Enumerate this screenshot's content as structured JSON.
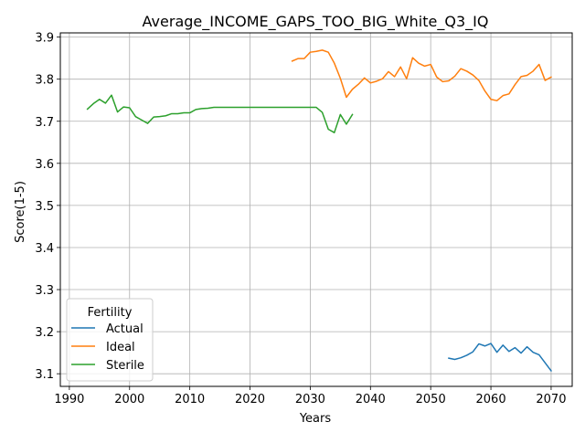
{
  "chart_data": {
    "type": "line",
    "title": "Average_INCOME_GAPS_TOO_BIG_White_Q3_IQ",
    "xlabel": "Years",
    "ylabel": "Score(1-5)",
    "xlim": [
      1988.5,
      2073.5
    ],
    "ylim": [
      3.07,
      3.91
    ],
    "xticks": [
      1990,
      2000,
      2010,
      2020,
      2030,
      2040,
      2050,
      2060,
      2070
    ],
    "yticks": [
      3.1,
      3.2,
      3.3,
      3.4,
      3.5,
      3.6,
      3.7,
      3.8,
      3.9
    ],
    "xtick_labels": [
      "1990",
      "2000",
      "2010",
      "2020",
      "2030",
      "2040",
      "2050",
      "2060",
      "2070"
    ],
    "ytick_labels": [
      "3.1",
      "3.2",
      "3.3",
      "3.4",
      "3.5",
      "3.6",
      "3.7",
      "3.8",
      "3.9"
    ],
    "grid": true,
    "legend": {
      "title": "Fertility",
      "placement": "lower-left"
    },
    "series": [
      {
        "name": "Actual",
        "color": "#1f77b4",
        "points": [
          [
            2053,
            3.137
          ],
          [
            2054,
            3.134
          ],
          [
            2055,
            3.138
          ],
          [
            2056,
            3.144
          ],
          [
            2057,
            3.152
          ],
          [
            2058,
            3.171
          ],
          [
            2059,
            3.166
          ],
          [
            2060,
            3.172
          ],
          [
            2061,
            3.151
          ],
          [
            2062,
            3.168
          ],
          [
            2063,
            3.153
          ],
          [
            2064,
            3.162
          ],
          [
            2065,
            3.149
          ],
          [
            2066,
            3.164
          ],
          [
            2067,
            3.151
          ],
          [
            2068,
            3.145
          ],
          [
            2069,
            3.126
          ],
          [
            2070,
            3.107
          ]
        ]
      },
      {
        "name": "Ideal",
        "color": "#ff7f0e",
        "points": [
          [
            2027,
            3.843
          ],
          [
            2028,
            3.849
          ],
          [
            2029,
            3.849
          ],
          [
            2030,
            3.864
          ],
          [
            2031,
            3.866
          ],
          [
            2032,
            3.869
          ],
          [
            2033,
            3.864
          ],
          [
            2034,
            3.838
          ],
          [
            2035,
            3.802
          ],
          [
            2036,
            3.757
          ],
          [
            2037,
            3.776
          ],
          [
            2038,
            3.788
          ],
          [
            2039,
            3.803
          ],
          [
            2040,
            3.791
          ],
          [
            2041,
            3.795
          ],
          [
            2042,
            3.801
          ],
          [
            2043,
            3.818
          ],
          [
            2044,
            3.806
          ],
          [
            2045,
            3.829
          ],
          [
            2046,
            3.801
          ],
          [
            2047,
            3.851
          ],
          [
            2048,
            3.838
          ],
          [
            2049,
            3.831
          ],
          [
            2050,
            3.835
          ],
          [
            2051,
            3.805
          ],
          [
            2052,
            3.794
          ],
          [
            2053,
            3.796
          ],
          [
            2054,
            3.807
          ],
          [
            2055,
            3.825
          ],
          [
            2056,
            3.819
          ],
          [
            2057,
            3.81
          ],
          [
            2058,
            3.797
          ],
          [
            2059,
            3.772
          ],
          [
            2060,
            3.752
          ],
          [
            2061,
            3.749
          ],
          [
            2062,
            3.761
          ],
          [
            2063,
            3.765
          ],
          [
            2064,
            3.787
          ],
          [
            2065,
            3.806
          ],
          [
            2066,
            3.809
          ],
          [
            2067,
            3.819
          ],
          [
            2068,
            3.835
          ],
          [
            2069,
            3.797
          ],
          [
            2070,
            3.805
          ]
        ]
      },
      {
        "name": "Sterile",
        "color": "#2ca02c",
        "points": [
          [
            1993,
            3.729
          ],
          [
            1994,
            3.742
          ],
          [
            1995,
            3.752
          ],
          [
            1996,
            3.743
          ],
          [
            1997,
            3.762
          ],
          [
            1998,
            3.722
          ],
          [
            1999,
            3.734
          ],
          [
            2000,
            3.732
          ],
          [
            2001,
            3.711
          ],
          [
            2002,
            3.703
          ],
          [
            2003,
            3.695
          ],
          [
            2004,
            3.71
          ],
          [
            2005,
            3.711
          ],
          [
            2006,
            3.713
          ],
          [
            2007,
            3.718
          ],
          [
            2008,
            3.718
          ],
          [
            2009,
            3.72
          ],
          [
            2010,
            3.72
          ],
          [
            2011,
            3.728
          ],
          [
            2012,
            3.73
          ],
          [
            2013,
            3.731
          ],
          [
            2014,
            3.733
          ],
          [
            2015,
            3.733
          ],
          [
            2016,
            3.733
          ],
          [
            2017,
            3.733
          ],
          [
            2018,
            3.733
          ],
          [
            2019,
            3.733
          ],
          [
            2020,
            3.733
          ],
          [
            2021,
            3.733
          ],
          [
            2022,
            3.733
          ],
          [
            2023,
            3.733
          ],
          [
            2024,
            3.733
          ],
          [
            2025,
            3.733
          ],
          [
            2026,
            3.733
          ],
          [
            2027,
            3.733
          ],
          [
            2028,
            3.733
          ],
          [
            2029,
            3.733
          ],
          [
            2030,
            3.733
          ],
          [
            2031,
            3.733
          ],
          [
            2032,
            3.721
          ],
          [
            2033,
            3.681
          ],
          [
            2034,
            3.673
          ],
          [
            2035,
            3.716
          ],
          [
            2036,
            3.693
          ],
          [
            2037,
            3.716
          ]
        ]
      }
    ]
  }
}
